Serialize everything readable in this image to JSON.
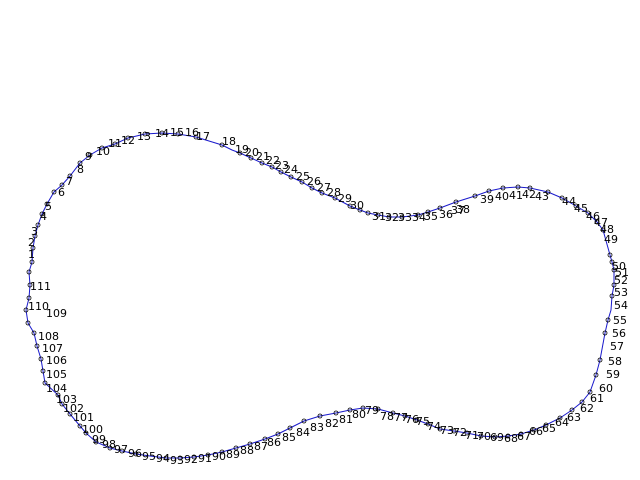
{
  "diagram": {
    "type": "numbered-closed-contour",
    "line_color": "#1a1acc",
    "marker_color": "#000000",
    "label_color": "#000000",
    "background": "#ffffff",
    "point_labels": [
      "1",
      "2",
      "3",
      "4",
      "5",
      "6",
      "7",
      "8",
      "9",
      "10",
      "11",
      "12",
      "13",
      "14",
      "15",
      "16",
      "17",
      "18",
      "19",
      "20",
      "21",
      "22",
      "23",
      "24",
      "25",
      "26",
      "27",
      "28",
      "29",
      "30",
      "31",
      "32",
      "33",
      "34",
      "35",
      "36",
      "37",
      "38",
      "39",
      "40",
      "41",
      "42",
      "43",
      "44",
      "45",
      "46",
      "47",
      "48",
      "49",
      "50",
      "51",
      "52",
      "53",
      "54",
      "55",
      "56",
      "57",
      "58",
      "59",
      "60",
      "61",
      "62",
      "63",
      "64",
      "65",
      "66",
      "67",
      "68",
      "69",
      "70",
      "71",
      "72",
      "73",
      "74",
      "75",
      "76",
      "77",
      "78",
      "79",
      "80",
      "81",
      "82",
      "83",
      "84",
      "85",
      "86",
      "87",
      "88",
      "89",
      "90",
      "91",
      "92",
      "93",
      "94",
      "95",
      "96",
      "97",
      "98",
      "99",
      "100",
      "101",
      "102",
      "103",
      "104",
      "105",
      "106",
      "107",
      "108",
      "109",
      "110",
      "111"
    ]
  }
}
